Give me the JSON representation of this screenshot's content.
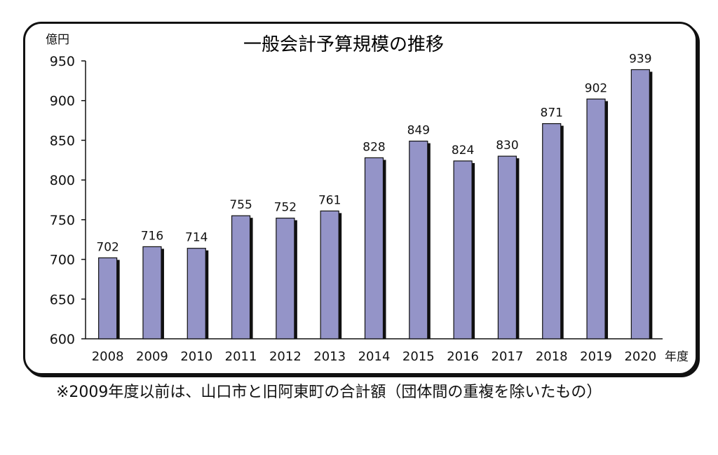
{
  "chart_data": {
    "type": "bar",
    "title": "一般会計予算規模の推移",
    "ylabel": "億円",
    "xlabel": "年度",
    "categories": [
      "2008",
      "2009",
      "2010",
      "2011",
      "2012",
      "2013",
      "2014",
      "2015",
      "2016",
      "2017",
      "2018",
      "2019",
      "2020"
    ],
    "values": [
      702,
      716,
      714,
      755,
      752,
      761,
      828,
      849,
      824,
      830,
      871,
      902,
      939
    ],
    "ylim": [
      600,
      950
    ],
    "yticks": [
      600,
      650,
      700,
      750,
      800,
      850,
      900,
      950
    ],
    "grid": false,
    "bar_color": "#9494c8",
    "shadow_color": "#111111"
  },
  "footnote": "※2009年度以前は、山口市と旧阿東町の合計額（団体間の重複を除いたもの）"
}
